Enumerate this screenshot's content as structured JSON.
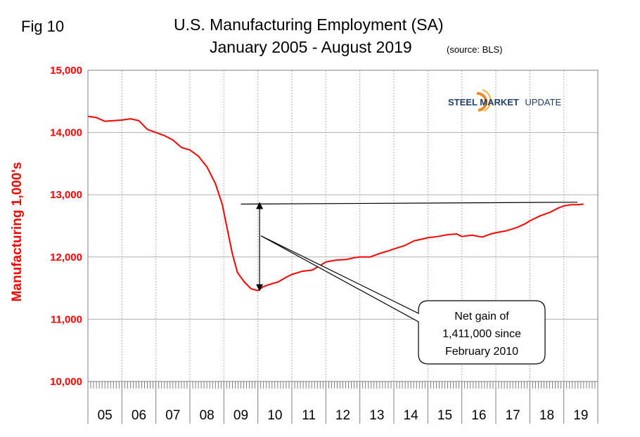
{
  "fig_label": "Fig 10",
  "title_line1": "U.S. Manufacturing Employment (SA)",
  "title_line2": "January 2005 - August 2019",
  "title_source": "(source: BLS)",
  "logo": {
    "steel": "STEEL MARKET",
    "update": "UPDATE",
    "icon": "steel-market-update-logo-icon"
  },
  "colors": {
    "series": "#ff0000",
    "axis_text": "#ff0000",
    "grid": "#b0b0b0",
    "arrow": "#000000"
  },
  "chart_data": {
    "type": "line",
    "ylabel": "Manufacturing  1,000's",
    "ylim": [
      10000,
      15000
    ],
    "yticks": [
      "10,000",
      "11,000",
      "12,000",
      "13,000",
      "14,000",
      "15,000"
    ],
    "xlim": [
      2005.0,
      2020.0
    ],
    "xticks": [
      "05",
      "06",
      "07",
      "08",
      "09",
      "10",
      "11",
      "12",
      "13",
      "14",
      "15",
      "16",
      "17",
      "18",
      "19"
    ],
    "grid": true,
    "series": [
      {
        "values": [
          [
            2005.0,
            14260
          ],
          [
            2005.25,
            14240
          ],
          [
            2005.5,
            14180
          ],
          [
            2005.75,
            14190
          ],
          [
            2006.0,
            14200
          ],
          [
            2006.25,
            14220
          ],
          [
            2006.5,
            14190
          ],
          [
            2006.75,
            14050
          ],
          [
            2007.0,
            14000
          ],
          [
            2007.25,
            13950
          ],
          [
            2007.5,
            13880
          ],
          [
            2007.75,
            13760
          ],
          [
            2008.0,
            13720
          ],
          [
            2008.25,
            13620
          ],
          [
            2008.5,
            13450
          ],
          [
            2008.75,
            13180
          ],
          [
            2008.95,
            12850
          ],
          [
            2009.1,
            12450
          ],
          [
            2009.25,
            12050
          ],
          [
            2009.4,
            11750
          ],
          [
            2009.6,
            11600
          ],
          [
            2009.8,
            11490
          ],
          [
            2010.0,
            11460
          ],
          [
            2010.15,
            11520
          ],
          [
            2010.35,
            11560
          ],
          [
            2010.6,
            11600
          ],
          [
            2010.85,
            11680
          ],
          [
            2011.0,
            11720
          ],
          [
            2011.3,
            11770
          ],
          [
            2011.6,
            11790
          ],
          [
            2011.85,
            11870
          ],
          [
            2012.0,
            11920
          ],
          [
            2012.3,
            11950
          ],
          [
            2012.6,
            11960
          ],
          [
            2012.85,
            11990
          ],
          [
            2013.0,
            12000
          ],
          [
            2013.3,
            12000
          ],
          [
            2013.6,
            12060
          ],
          [
            2013.85,
            12100
          ],
          [
            2014.0,
            12130
          ],
          [
            2014.3,
            12180
          ],
          [
            2014.6,
            12260
          ],
          [
            2014.85,
            12290
          ],
          [
            2015.0,
            12310
          ],
          [
            2015.3,
            12330
          ],
          [
            2015.6,
            12360
          ],
          [
            2015.85,
            12370
          ],
          [
            2016.0,
            12330
          ],
          [
            2016.3,
            12350
          ],
          [
            2016.6,
            12320
          ],
          [
            2016.85,
            12370
          ],
          [
            2017.0,
            12390
          ],
          [
            2017.3,
            12420
          ],
          [
            2017.6,
            12470
          ],
          [
            2017.85,
            12530
          ],
          [
            2018.0,
            12580
          ],
          [
            2018.3,
            12660
          ],
          [
            2018.6,
            12720
          ],
          [
            2018.85,
            12790
          ],
          [
            2019.0,
            12820
          ],
          [
            2019.2,
            12840
          ],
          [
            2019.4,
            12840
          ],
          [
            2019.58,
            12850
          ]
        ]
      }
    ],
    "annotations": {
      "reference_line": {
        "x1": 2009.5,
        "x2": 2019.4,
        "y1": 12850,
        "y2": 12880
      },
      "arrow": {
        "x": 2010.05,
        "y_top": 12850,
        "y_bottom": 11460
      },
      "callout_text": [
        "Net gain of",
        "1,411,000 since",
        "February 2010"
      ]
    }
  }
}
